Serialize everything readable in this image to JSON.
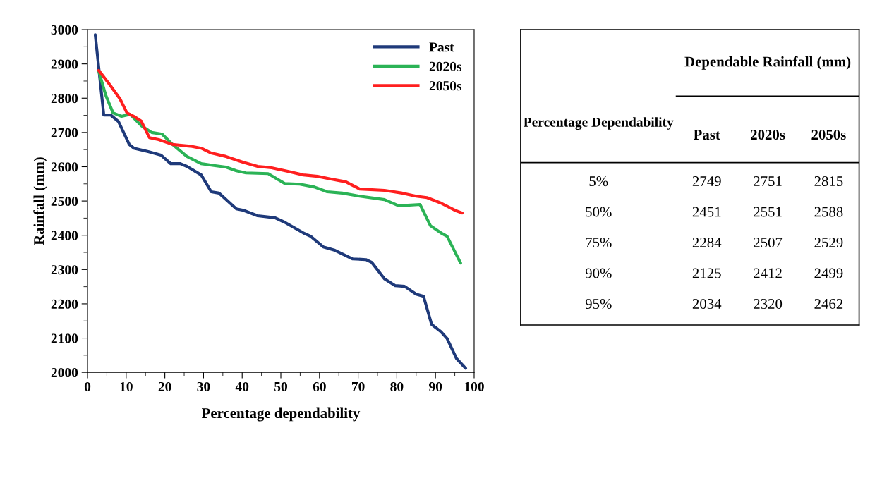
{
  "chart_data": [
    {
      "type": "line",
      "xlabel": "Percentage dependability",
      "ylabel": "Rainfall (mm)",
      "xlim": [
        0,
        100
      ],
      "ylim": [
        2000,
        3000
      ],
      "xticks": [
        0,
        10,
        20,
        30,
        40,
        50,
        60,
        70,
        80,
        90,
        100
      ],
      "yticks": [
        2000,
        2100,
        2200,
        2300,
        2400,
        2500,
        2600,
        2700,
        2800,
        2900,
        3000
      ],
      "grid": false,
      "legend": "top right",
      "marker": "none",
      "line_style": "solid",
      "series": [
        {
          "name": "Past",
          "color": "#1f3a7a",
          "x": [
            2.0,
            4.2,
            6,
            8,
            10.8,
            12,
            15.7,
            19,
            21.5,
            24,
            25.7,
            29.4,
            32,
            34,
            38.5,
            40.3,
            44,
            48.5,
            51,
            55.8,
            57.7,
            61,
            64,
            68.6,
            72,
            73.5,
            76.8,
            79.6,
            82,
            85,
            86.9,
            89,
            91.4,
            93,
            95.4,
            97.8
          ],
          "values": [
            2985,
            2751,
            2751,
            2732,
            2665,
            2654,
            2644,
            2634,
            2609,
            2609,
            2601,
            2576,
            2527,
            2523,
            2477,
            2473,
            2457,
            2451,
            2438,
            2407,
            2397,
            2366,
            2356,
            2331,
            2329,
            2321,
            2273,
            2253,
            2251,
            2228,
            2222,
            2140,
            2119,
            2099,
            2041,
            2012
          ]
        },
        {
          "name": "2020s",
          "color": "#2bb356",
          "x": [
            2.9,
            4.7,
            6.6,
            8.8,
            11,
            13.9,
            16.6,
            19.3,
            22,
            25.7,
            29.4,
            33,
            35.8,
            38.5,
            41,
            46.7,
            51,
            54.9,
            58.6,
            62,
            65.9,
            70.4,
            76.8,
            80.5,
            86,
            88.7,
            91.4,
            93,
            96.5
          ],
          "values": [
            2879,
            2809,
            2757,
            2747,
            2753,
            2720,
            2700,
            2695,
            2665,
            2630,
            2609,
            2603,
            2599,
            2588,
            2582,
            2580,
            2551,
            2549,
            2541,
            2527,
            2523,
            2514,
            2504,
            2486,
            2490,
            2428,
            2407,
            2397,
            2319
          ]
        },
        {
          "name": "2050s",
          "color": "#ff1f1f",
          "x": [
            2.9,
            5.7,
            8.4,
            10.2,
            12,
            13.9,
            16,
            18.4,
            22,
            26.6,
            29.4,
            32,
            35.8,
            40.3,
            44,
            47.6,
            52,
            55.8,
            59.5,
            63,
            66.8,
            70.4,
            76.8,
            81.4,
            85,
            87.8,
            91.4,
            95,
            96.9
          ],
          "values": [
            2881,
            2840,
            2798,
            2757,
            2747,
            2733,
            2685,
            2679,
            2665,
            2660,
            2654,
            2640,
            2630,
            2613,
            2601,
            2597,
            2586,
            2576,
            2572,
            2564,
            2556,
            2535,
            2531,
            2523,
            2514,
            2510,
            2494,
            2473,
            2465
          ]
        }
      ]
    },
    {
      "type": "other",
      "title": "Dependable Rainfall (mm)",
      "ylabel": "Percentage Dependability",
      "categories": [
        "Past",
        "2020s",
        "2050s"
      ],
      "y_categories": [
        "5%",
        "50%",
        "75%",
        "90%",
        "95%"
      ],
      "cell_labels": [
        [
          "2749",
          "2751",
          "2815"
        ],
        [
          "2451",
          "2551",
          "2588"
        ],
        [
          "2284",
          "2507",
          "2529"
        ],
        [
          "2125",
          "2412",
          "2499"
        ],
        [
          "2034",
          "2320",
          "2462"
        ]
      ]
    }
  ]
}
